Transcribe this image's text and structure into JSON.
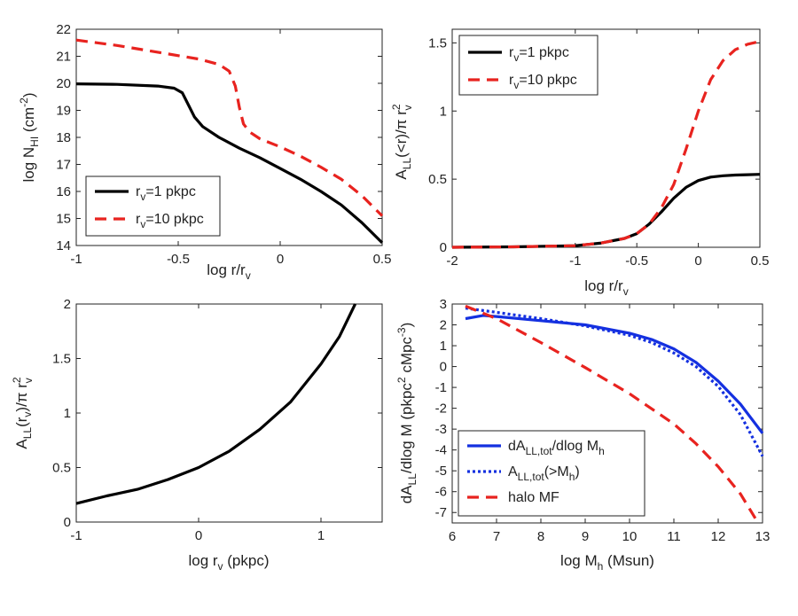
{
  "chart_data": [
    {
      "type": "line",
      "xlabel": "log r/r_v",
      "ylabel": "log N_HI (cm^-2)",
      "xlim": [
        -1,
        0.5
      ],
      "ylim": [
        14,
        22
      ],
      "xticks": [
        -1,
        -0.5,
        0,
        0.5
      ],
      "yticks": [
        14,
        15,
        16,
        17,
        18,
        19,
        20,
        21,
        22
      ],
      "legend_position": "bottom-left",
      "series": [
        {
          "name": "r_v=1 pkpc",
          "color": "#000000",
          "style": "solid",
          "x": [
            -1,
            -0.8,
            -0.6,
            -0.52,
            -0.48,
            -0.45,
            -0.42,
            -0.38,
            -0.3,
            -0.2,
            -0.1,
            0,
            0.1,
            0.2,
            0.3,
            0.4,
            0.5
          ],
          "y": [
            19.98,
            19.96,
            19.9,
            19.82,
            19.65,
            19.2,
            18.75,
            18.4,
            18.0,
            17.6,
            17.25,
            16.85,
            16.45,
            16.0,
            15.5,
            14.85,
            14.1
          ]
        },
        {
          "name": "r_v=10 pkpc",
          "color": "#e8231f",
          "style": "dashed",
          "x": [
            -1,
            -0.8,
            -0.6,
            -0.4,
            -0.3,
            -0.25,
            -0.22,
            -0.2,
            -0.18,
            -0.15,
            -0.1,
            0,
            0.1,
            0.2,
            0.3,
            0.4,
            0.5
          ],
          "y": [
            21.6,
            21.4,
            21.15,
            20.9,
            20.7,
            20.45,
            19.9,
            19.1,
            18.5,
            18.2,
            17.95,
            17.65,
            17.3,
            16.9,
            16.45,
            15.85,
            15.1
          ]
        }
      ]
    },
    {
      "type": "line",
      "xlabel": "log r/r_v",
      "ylabel": "A_LL(<r)/π r_v^2",
      "xlim": [
        -2,
        0.5
      ],
      "ylim": [
        0,
        1.6
      ],
      "xticks": [
        -2,
        -1,
        -0.5,
        0,
        0.5
      ],
      "xticklabels": [
        "-2",
        "-1",
        "-0.5",
        "0",
        "0.5"
      ],
      "yticks": [
        0,
        0.5,
        1,
        1.5
      ],
      "legend_position": "top-left",
      "series": [
        {
          "name": "r_v=1 pkpc",
          "color": "#000000",
          "style": "solid",
          "x": [
            -2,
            -1.5,
            -1,
            -0.8,
            -0.6,
            -0.5,
            -0.4,
            -0.3,
            -0.2,
            -0.1,
            0,
            0.1,
            0.2,
            0.3,
            0.4,
            0.5
          ],
          "y": [
            0,
            0.003,
            0.012,
            0.03,
            0.065,
            0.1,
            0.17,
            0.26,
            0.36,
            0.44,
            0.49,
            0.515,
            0.525,
            0.53,
            0.533,
            0.535
          ]
        },
        {
          "name": "r_v=10 pkpc",
          "color": "#e8231f",
          "style": "dashed",
          "x": [
            -2,
            -1.5,
            -1,
            -0.8,
            -0.6,
            -0.5,
            -0.4,
            -0.3,
            -0.2,
            -0.1,
            0,
            0.1,
            0.2,
            0.3,
            0.4,
            0.5
          ],
          "y": [
            0,
            0.003,
            0.012,
            0.03,
            0.065,
            0.1,
            0.17,
            0.29,
            0.46,
            0.72,
            1.0,
            1.23,
            1.37,
            1.45,
            1.49,
            1.51
          ]
        }
      ]
    },
    {
      "type": "line",
      "xlabel": "log r_v (pkpc)",
      "ylabel": "A_LL(r_v)/π r_v^2",
      "xlim": [
        -1,
        1.5
      ],
      "ylim": [
        0,
        2
      ],
      "xticks": [
        -1,
        0,
        1
      ],
      "yticks": [
        0,
        0.5,
        1,
        1.5,
        2
      ],
      "series": [
        {
          "name": "",
          "color": "#000000",
          "style": "solid",
          "x": [
            -1,
            -0.75,
            -0.5,
            -0.25,
            0,
            0.25,
            0.5,
            0.75,
            1,
            1.15,
            1.28
          ],
          "y": [
            0.17,
            0.24,
            0.3,
            0.39,
            0.5,
            0.65,
            0.85,
            1.1,
            1.45,
            1.7,
            2.0
          ]
        }
      ]
    },
    {
      "type": "line",
      "xlabel": "log M_h (Msun)",
      "ylabel": "dA_LL/dlog M (pkpc^2 cMpc^-3)",
      "xlim": [
        6,
        13
      ],
      "ylim": [
        -7.5,
        3
      ],
      "xticks": [
        6,
        7,
        8,
        9,
        10,
        11,
        12,
        13
      ],
      "yticks": [
        -7,
        -6,
        -5,
        -4,
        -3,
        -2,
        -1,
        0,
        1,
        2,
        3
      ],
      "legend_position": "bottom-left",
      "series": [
        {
          "name": "dA_LL,tot/dlog M_h",
          "color": "#1430e0",
          "style": "solid",
          "x": [
            6.3,
            6.7,
            7,
            8,
            9,
            10,
            10.5,
            11,
            11.5,
            12,
            12.5,
            13
          ],
          "y": [
            2.3,
            2.45,
            2.4,
            2.2,
            2.0,
            1.6,
            1.3,
            0.85,
            0.2,
            -0.7,
            -1.8,
            -3.2
          ]
        },
        {
          "name": "A_LL,tot(>M_h)",
          "color": "#1430e0",
          "style": "dotted",
          "x": [
            6.3,
            7,
            8,
            9,
            10,
            10.5,
            11,
            11.5,
            12,
            12.5,
            13
          ],
          "y": [
            2.8,
            2.6,
            2.3,
            1.95,
            1.5,
            1.15,
            0.65,
            0.0,
            -0.95,
            -2.3,
            -4.3
          ]
        },
        {
          "name": "halo MF",
          "color": "#e8231f",
          "style": "dashed",
          "x": [
            6.3,
            7,
            8,
            9,
            10,
            11,
            11.5,
            12,
            12.5,
            12.9
          ],
          "y": [
            2.9,
            2.3,
            1.15,
            -0.05,
            -1.3,
            -2.75,
            -3.7,
            -4.8,
            -6.1,
            -7.5
          ]
        }
      ]
    }
  ],
  "legends": {
    "p1": [
      {
        "pre": "r",
        "sub": "v",
        "post": "=1 pkpc"
      },
      {
        "pre": "r",
        "sub": "v",
        "post": "=10 pkpc"
      }
    ],
    "p2": [
      {
        "pre": "r",
        "sub": "v",
        "post": "=1 pkpc"
      },
      {
        "pre": "r",
        "sub": "v",
        "post": "=10 pkpc"
      }
    ],
    "p4": [
      {
        "pre": "dA",
        "sub": "LL,tot",
        "post": "/dlog M",
        "sub2": "h",
        "post2": ""
      },
      {
        "pre": "A",
        "sub": "LL,tot",
        "post": "(>M",
        "sub2": "h",
        "post2": ")"
      },
      {
        "pre": "halo MF",
        "sub": "",
        "post": "",
        "sub2": "",
        "post2": ""
      }
    ]
  },
  "axis_labels": {
    "p1_x": {
      "a": "log r/r",
      "b": "v"
    },
    "p1_y": {
      "a": "log N",
      "b": "HI",
      "c": " (cm",
      "d": "-2",
      "e": ")"
    },
    "p2_x": {
      "a": "log r/r",
      "b": "v"
    },
    "p2_y": {
      "a": "A",
      "b": "LL",
      "c": "(<r)/π r",
      "d": "2",
      "e": "v"
    },
    "p3_x": {
      "a": "log r",
      "b": "v",
      "c": " (pkpc)"
    },
    "p3_y": {
      "a": "A",
      "b": "LL",
      "c": "(r",
      "d": "v",
      "e": ")/π r",
      "f": "2",
      "g": "v"
    },
    "p4_x": {
      "a": "log M",
      "b": "h",
      "c": " (Msun)"
    },
    "p4_y": {
      "a": "dA",
      "b": "LL",
      "c": "/dlog M (pkpc",
      "d": "2",
      "e": " cMpc",
      "f": "-3",
      "g": ")"
    }
  }
}
